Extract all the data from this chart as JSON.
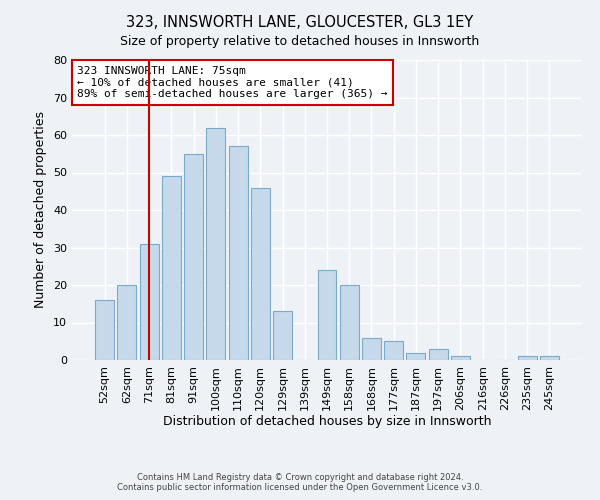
{
  "title": "323, INNSWORTH LANE, GLOUCESTER, GL3 1EY",
  "subtitle": "Size of property relative to detached houses in Innsworth",
  "xlabel": "Distribution of detached houses by size in Innsworth",
  "ylabel": "Number of detached properties",
  "categories": [
    "52sqm",
    "62sqm",
    "71sqm",
    "81sqm",
    "91sqm",
    "100sqm",
    "110sqm",
    "120sqm",
    "129sqm",
    "139sqm",
    "149sqm",
    "158sqm",
    "168sqm",
    "177sqm",
    "187sqm",
    "197sqm",
    "206sqm",
    "216sqm",
    "226sqm",
    "235sqm",
    "245sqm"
  ],
  "values": [
    16,
    20,
    31,
    49,
    55,
    62,
    57,
    46,
    13,
    0,
    24,
    20,
    6,
    5,
    2,
    3,
    1,
    0,
    0,
    1,
    1
  ],
  "bar_color": "#c6d9ea",
  "bar_edge_color": "#7aaac8",
  "vline_x_index": 2,
  "vline_color": "#cc0000",
  "annotation_text": "323 INNSWORTH LANE: 75sqm\n← 10% of detached houses are smaller (41)\n89% of semi-detached houses are larger (365) →",
  "annotation_box_color": "#ffffff",
  "annotation_box_edge_color": "#cc0000",
  "ylim": [
    0,
    80
  ],
  "yticks": [
    0,
    10,
    20,
    30,
    40,
    50,
    60,
    70,
    80
  ],
  "background_color": "#eef2f7",
  "grid_color": "#ffffff",
  "footer_line1": "Contains HM Land Registry data © Crown copyright and database right 2024.",
  "footer_line2": "Contains public sector information licensed under the Open Government Licence v3.0."
}
